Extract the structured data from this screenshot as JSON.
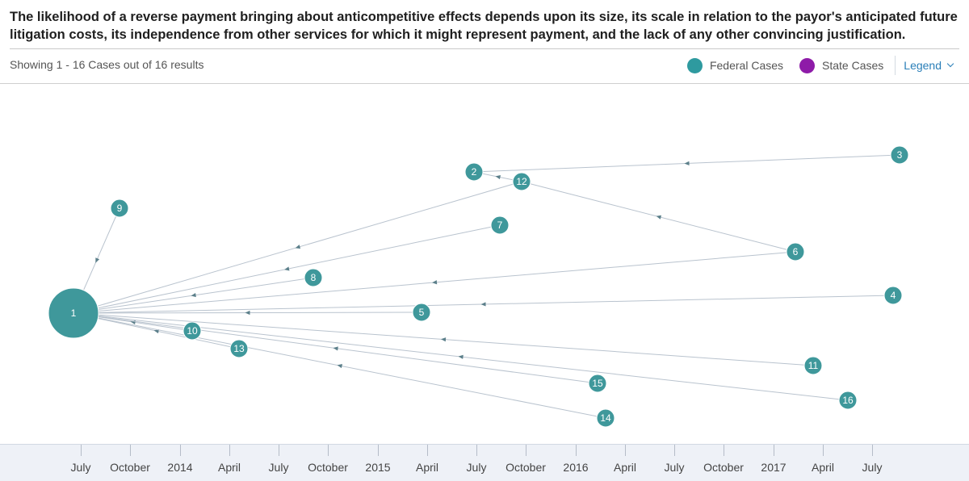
{
  "header": {
    "headline": "The likelihood of a reverse payment bringing about anticompetitive effects depends upon its size, its scale in relation to the payor's anticipated future litigation costs, its independence from other services for which it might represent payment, and the lack of any other convincing justification.",
    "results_text": "Showing 1 - 16 Cases out of 16 results"
  },
  "legend": {
    "federal_label": "Federal Cases",
    "state_label": "State Cases",
    "toggle_label": "Legend",
    "federal_color": "#2e9a9f",
    "state_color": "#8e1ba8"
  },
  "timeline": {
    "labels": [
      "July",
      "October",
      "2014",
      "April",
      "July",
      "October",
      "2015",
      "April",
      "July",
      "October",
      "2016",
      "April",
      "July",
      "October",
      "2017",
      "April",
      "July"
    ]
  },
  "citation_graph": {
    "node_color": "#3f989b",
    "edge_color": "#b9c3ce",
    "nodes": [
      {
        "id": "1"
      },
      {
        "id": "2"
      },
      {
        "id": "3"
      },
      {
        "id": "4"
      },
      {
        "id": "5"
      },
      {
        "id": "6"
      },
      {
        "id": "7"
      },
      {
        "id": "8"
      },
      {
        "id": "9"
      },
      {
        "id": "10"
      },
      {
        "id": "11"
      },
      {
        "id": "12"
      },
      {
        "id": "13"
      },
      {
        "id": "14"
      },
      {
        "id": "15"
      },
      {
        "id": "16"
      }
    ],
    "edges": [
      {
        "source": "3",
        "target": "2"
      },
      {
        "source": "12",
        "target": "2"
      },
      {
        "source": "6",
        "target": "12"
      },
      {
        "source": "12",
        "target": "1"
      },
      {
        "source": "7",
        "target": "1"
      },
      {
        "source": "8",
        "target": "1"
      },
      {
        "source": "6",
        "target": "1"
      },
      {
        "source": "4",
        "target": "1"
      },
      {
        "source": "5",
        "target": "1"
      },
      {
        "source": "9",
        "target": "1"
      },
      {
        "source": "10",
        "target": "1"
      },
      {
        "source": "13",
        "target": "1"
      },
      {
        "source": "11",
        "target": "1"
      },
      {
        "source": "15",
        "target": "1"
      },
      {
        "source": "14",
        "target": "1"
      },
      {
        "source": "16",
        "target": "1"
      }
    ]
  }
}
